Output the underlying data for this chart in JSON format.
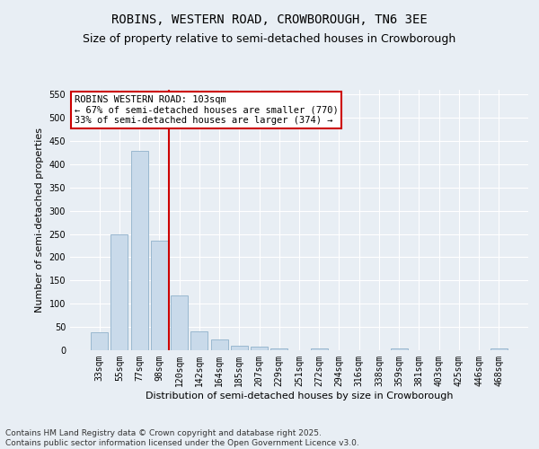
{
  "title": "ROBINS, WESTERN ROAD, CROWBOROUGH, TN6 3EE",
  "subtitle": "Size of property relative to semi-detached houses in Crowborough",
  "xlabel": "Distribution of semi-detached houses by size in Crowborough",
  "ylabel": "Number of semi-detached properties",
  "categories": [
    "33sqm",
    "55sqm",
    "77sqm",
    "98sqm",
    "120sqm",
    "142sqm",
    "164sqm",
    "185sqm",
    "207sqm",
    "229sqm",
    "251sqm",
    "272sqm",
    "294sqm",
    "316sqm",
    "338sqm",
    "359sqm",
    "381sqm",
    "403sqm",
    "425sqm",
    "446sqm",
    "468sqm"
  ],
  "values": [
    38,
    250,
    428,
    235,
    118,
    40,
    23,
    9,
    8,
    4,
    0,
    4,
    0,
    0,
    0,
    3,
    0,
    0,
    0,
    0,
    4
  ],
  "bar_color": "#c9daea",
  "bar_edge_color": "#9ab8d0",
  "vline_x": 3.5,
  "vline_color": "#cc0000",
  "annotation_title": "ROBINS WESTERN ROAD: 103sqm",
  "annotation_line1": "← 67% of semi-detached houses are smaller (770)",
  "annotation_line2": "33% of semi-detached houses are larger (374) →",
  "annotation_box_color": "#ffffff",
  "annotation_box_edge": "#cc0000",
  "ylim": [
    0,
    560
  ],
  "yticks": [
    0,
    50,
    100,
    150,
    200,
    250,
    300,
    350,
    400,
    450,
    500,
    550
  ],
  "footer_line1": "Contains HM Land Registry data © Crown copyright and database right 2025.",
  "footer_line2": "Contains public sector information licensed under the Open Government Licence v3.0.",
  "bg_color": "#e8eef4",
  "plot_bg_color": "#e8eef4",
  "grid_color": "#ffffff",
  "title_fontsize": 10,
  "subtitle_fontsize": 9,
  "label_fontsize": 8,
  "tick_fontsize": 7,
  "footer_fontsize": 6.5,
  "annotation_fontsize": 7.5
}
